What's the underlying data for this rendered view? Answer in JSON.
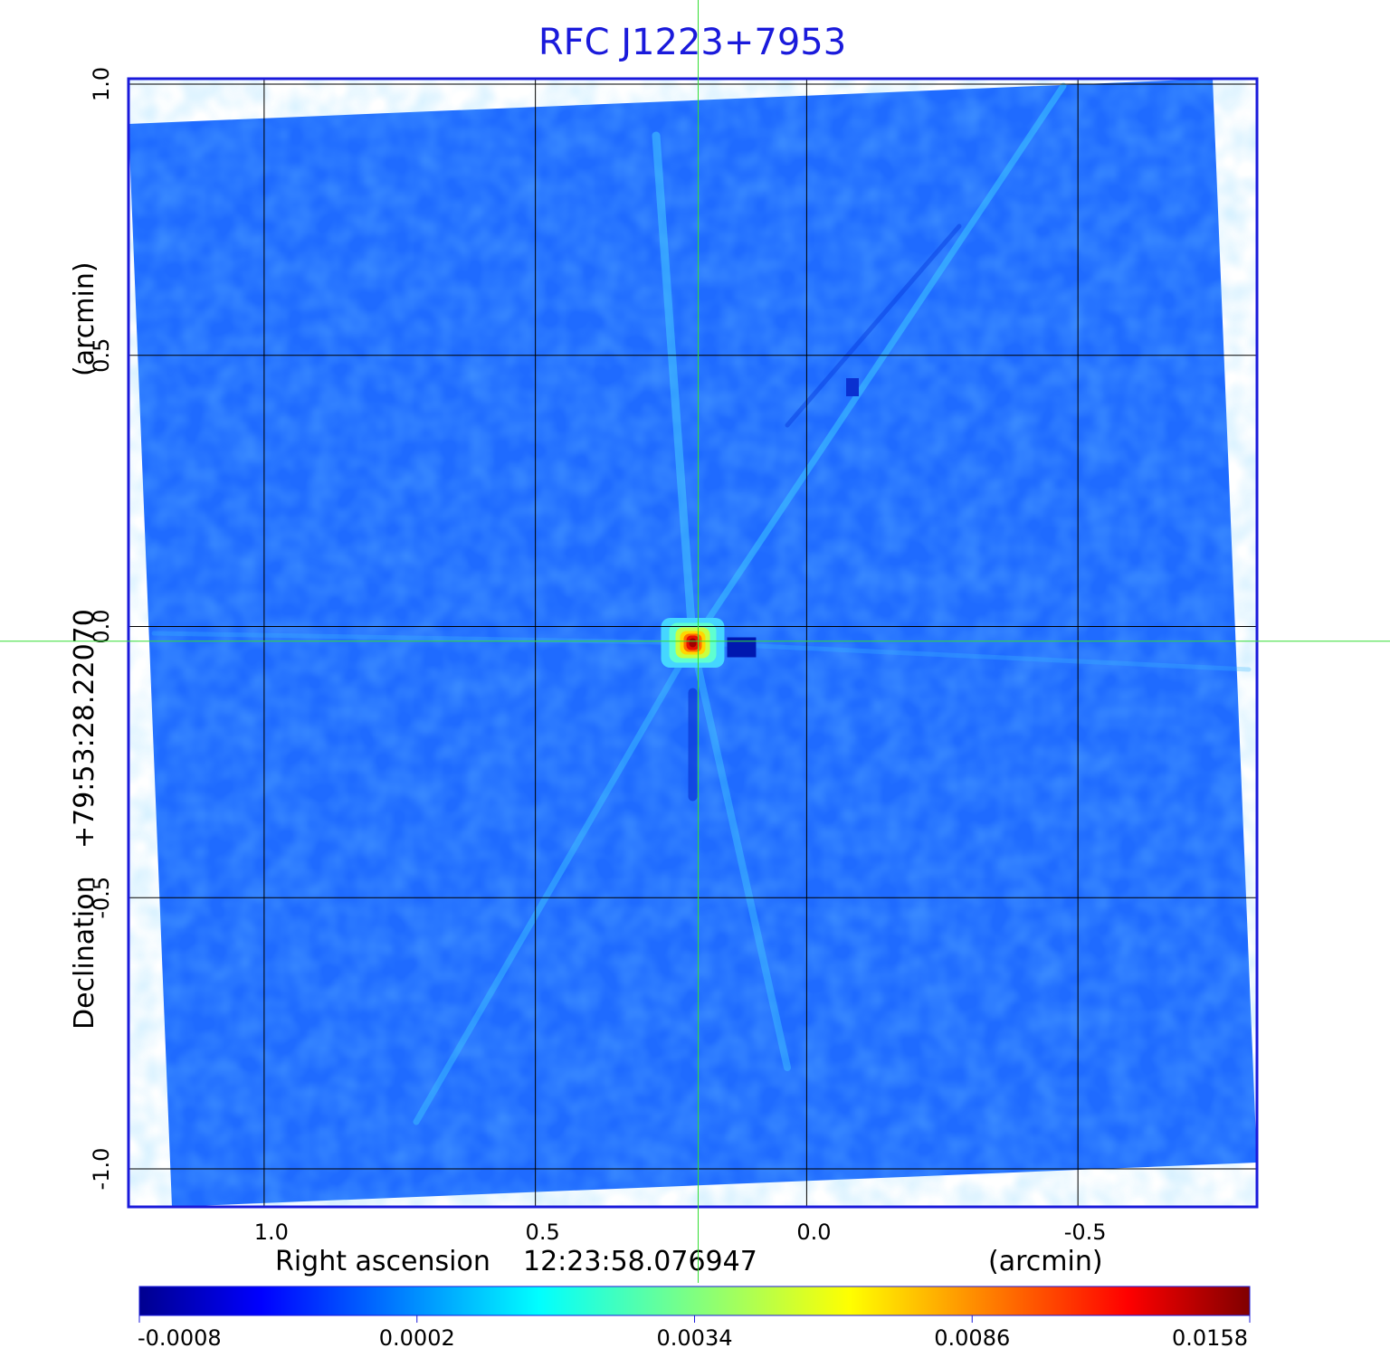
{
  "chart_data": {
    "type": "heatmap",
    "title": "RFC J1223+7953",
    "x_axis": {
      "label": "Right ascension",
      "center_value": "12:23:58.076947",
      "unit": "(arcmin)",
      "ticks": [
        1.0,
        0.5,
        0.0,
        -0.5
      ],
      "tick_labels": [
        "1.0",
        "0.5",
        "0.0",
        "-0.5"
      ],
      "range": [
        1.25,
        -0.83
      ]
    },
    "y_axis": {
      "label": "Declination",
      "center_value": "+79:53:28.22070",
      "unit": "(arcmin)",
      "ticks": [
        1.0,
        0.5,
        0.0,
        -0.5,
        -1.0
      ],
      "tick_labels": [
        "1.0",
        "0.5",
        "0.0",
        "-0.5",
        "-1.0"
      ],
      "range": [
        -1.07,
        1.01
      ]
    },
    "grid": true,
    "crosshair": {
      "x": 0.2,
      "y": -0.027,
      "color": "#33dd33"
    },
    "colorbar": {
      "placement": "bottom",
      "colormap": "jet",
      "tick_values": [
        -0.0008,
        0.0002,
        0.0034,
        0.0086,
        0.0158
      ],
      "tick_labels": [
        "-0.0008",
        "0.0002",
        "0.0034",
        "0.0086",
        "0.0158"
      ],
      "min": -0.0008,
      "max": 0.0158
    },
    "background_level": 0.0002,
    "source": {
      "x": 0.21,
      "y": -0.03,
      "peak": 0.0158
    },
    "negative_feature": {
      "x": 0.12,
      "y": -0.04,
      "value": -0.0008
    },
    "colors": {
      "frame": "#1a1adb",
      "title": "#1a1adb",
      "grid": "#000000"
    }
  }
}
